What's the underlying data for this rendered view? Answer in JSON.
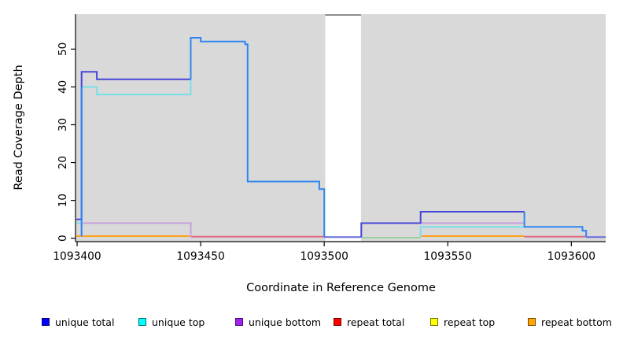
{
  "chart_data": {
    "type": "line",
    "subtype": "step-coverage-plot",
    "title": "",
    "xlabel": "Coordinate in Reference Genome",
    "ylabel": "Read Coverage Depth",
    "xlim": [
      1093399.68,
      1093613.9
    ],
    "ylim": [
      -0.69,
      59.24
    ],
    "x_ticks": [
      1093400,
      1093450,
      1093500,
      1093550,
      1093600
    ],
    "y_ticks": [
      0,
      10,
      20,
      30,
      40,
      50
    ],
    "grid": false,
    "plot_background": "#D9D9D9",
    "gap_region": {
      "x_from": 1093500.4,
      "x_to": 1093514.9,
      "fill": "#FFFFFF",
      "cap_color": "#8C8C8C"
    },
    "legend_position": "bottom",
    "legend": [
      {
        "label": "unique total",
        "color": "#0000FF"
      },
      {
        "label": "unique top",
        "color": "#00FFFF"
      },
      {
        "label": "unique bottom",
        "color": "#A020F0"
      },
      {
        "label": "repeat total",
        "color": "#FF0000"
      },
      {
        "label": "repeat top",
        "color": "#FFFF00"
      },
      {
        "label": "repeat bottom",
        "color": "#FFA500"
      }
    ],
    "series": [
      {
        "name": "unique total",
        "step_points": [
          [
            1093400,
            5
          ],
          [
            1093402,
            44
          ],
          [
            1093408,
            42
          ],
          [
            1093446,
            53
          ],
          [
            1093450,
            52
          ],
          [
            1093468,
            51
          ],
          [
            1093469,
            15
          ],
          [
            1093498,
            13
          ],
          [
            1093500,
            0
          ],
          [
            1093515,
            4
          ],
          [
            1093539,
            7
          ],
          [
            1093581,
            3
          ],
          [
            1093605,
            2
          ],
          [
            1093606,
            0
          ]
        ]
      },
      {
        "name": "unique top",
        "step_points": [
          [
            1093400,
            4
          ],
          [
            1093402,
            40
          ],
          [
            1093408,
            38
          ],
          [
            1093446,
            53
          ],
          [
            1093450,
            52
          ],
          [
            1093468,
            51
          ],
          [
            1093469,
            15
          ],
          [
            1093498,
            13
          ],
          [
            1093500,
            0
          ],
          [
            1093539,
            3
          ],
          [
            1093605,
            2
          ],
          [
            1093606,
            0
          ]
        ]
      },
      {
        "name": "unique bottom",
        "step_points": [
          [
            1093400,
            0
          ],
          [
            1093402,
            4
          ],
          [
            1093446,
            0
          ],
          [
            1093515,
            4
          ],
          [
            1093581,
            0
          ]
        ]
      },
      {
        "name": "repeat total",
        "step_points": [
          [
            1093400,
            0.4
          ]
        ]
      },
      {
        "name": "repeat top",
        "step_points": [
          [
            1093400,
            0.1
          ]
        ]
      },
      {
        "name": "repeat bottom",
        "step_points": [
          [
            1093400,
            0.5
          ],
          [
            1093446,
            0
          ],
          [
            1093539,
            0.5
          ],
          [
            1093581,
            0
          ]
        ]
      }
    ],
    "render_series": [
      {
        "name": "overlap-top-repeat-zero",
        "color": "#98CFA0",
        "points": [
          [
            1093515,
            0.15
          ],
          [
            1093539,
            0.15
          ]
        ]
      },
      {
        "name": "repeat-bottom-left",
        "color": "#FFA019",
        "points": [
          [
            1093399.7,
            0.55
          ],
          [
            1093446,
            0.55
          ]
        ]
      },
      {
        "name": "repeat-bottom-right",
        "color": "#FFA019",
        "points": [
          [
            1093539,
            0.55
          ],
          [
            1093581,
            0.55
          ]
        ]
      },
      {
        "name": "repeat-total-left",
        "color": "#E06C85",
        "points": [
          [
            1093446,
            0.4
          ],
          [
            1093500.4,
            0.4
          ]
        ]
      },
      {
        "name": "repeat-total-right",
        "color": "#E06C85",
        "points": [
          [
            1093581,
            0.4
          ],
          [
            1093606,
            0.4
          ]
        ]
      },
      {
        "name": "zero-line-gap",
        "color": "#6B6BE0",
        "points": [
          [
            1093500,
            0.3
          ],
          [
            1093515,
            0.3
          ]
        ]
      },
      {
        "name": "zero-line-tail",
        "color": "#6B6BE0",
        "points": [
          [
            1093606,
            0.3
          ],
          [
            1093613.9,
            0.3
          ]
        ]
      },
      {
        "name": "unique-bottom-left",
        "color": "#C79FDC",
        "points": [
          [
            1093401.8,
            0.4
          ],
          [
            1093401.8,
            4
          ],
          [
            1093446,
            4
          ],
          [
            1093446,
            0.2
          ]
        ]
      },
      {
        "name": "unique-bottom-right",
        "color": "#C79FDC",
        "points": [
          [
            1093515,
            4
          ],
          [
            1093581,
            4
          ]
        ]
      },
      {
        "name": "unique-top-left",
        "color": "#7ADFE8",
        "points": [
          [
            1093399.7,
            4
          ],
          [
            1093401.8,
            4
          ],
          [
            1093401.8,
            40
          ],
          [
            1093408,
            40
          ],
          [
            1093408,
            38
          ],
          [
            1093446,
            38
          ],
          [
            1093446,
            42
          ]
        ]
      },
      {
        "name": "unique-top-right",
        "color": "#7ADFE8",
        "points": [
          [
            1093539,
            0.3
          ],
          [
            1093539,
            3
          ],
          [
            1093581,
            3
          ]
        ]
      },
      {
        "name": "unique-total-left",
        "color": "#4545D9",
        "points": [
          [
            1093399.7,
            5
          ],
          [
            1093401.8,
            5
          ],
          [
            1093401.8,
            44
          ],
          [
            1093408,
            44
          ],
          [
            1093408,
            42
          ],
          [
            1093446,
            42
          ]
        ]
      },
      {
        "name": "unique-total-right",
        "color": "#4545D9",
        "points": [
          [
            1093515,
            0.3
          ],
          [
            1093515,
            4
          ],
          [
            1093539,
            4
          ],
          [
            1093539,
            7
          ],
          [
            1093581,
            7
          ]
        ]
      },
      {
        "name": "overlap-rise-left",
        "color": "#2E86F0",
        "points": [
          [
            1093401.8,
            0.5
          ],
          [
            1093401.8,
            40
          ]
        ]
      },
      {
        "name": "overlap-main",
        "color": "#2E86F0",
        "points": [
          [
            1093446,
            42
          ],
          [
            1093446,
            53
          ],
          [
            1093450,
            53
          ],
          [
            1093450,
            52
          ],
          [
            1093468,
            52
          ],
          [
            1093468,
            51.3
          ],
          [
            1093469,
            51.3
          ],
          [
            1093469,
            15
          ],
          [
            1093498,
            15
          ],
          [
            1093498,
            13
          ],
          [
            1093500,
            13
          ],
          [
            1093500,
            0.3
          ]
        ]
      },
      {
        "name": "overlap-right",
        "color": "#2E86F0",
        "points": [
          [
            1093581,
            7
          ],
          [
            1093581,
            3
          ],
          [
            1093604.5,
            3
          ],
          [
            1093604.5,
            2
          ],
          [
            1093606,
            2
          ],
          [
            1093606,
            0.3
          ]
        ]
      }
    ]
  }
}
